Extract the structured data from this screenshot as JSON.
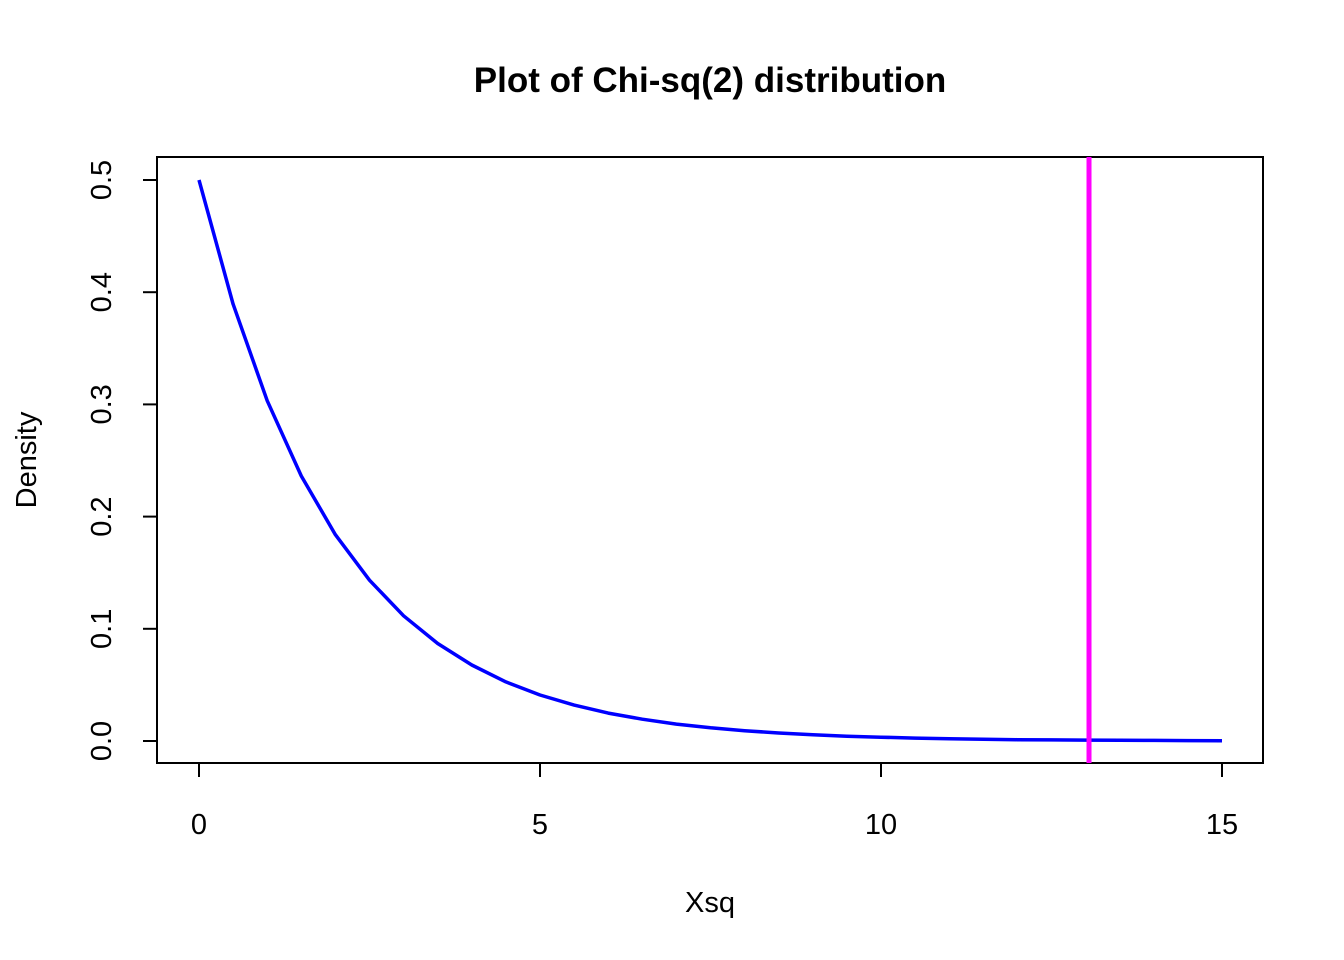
{
  "chart_data": {
    "type": "line",
    "title": "Plot of Chi-sq(2) distribution",
    "xlabel": "Xsq",
    "ylabel": "Density",
    "xlim": [
      0,
      15
    ],
    "ylim": [
      0,
      0.5
    ],
    "x_ticks": [
      {
        "value": 0,
        "label": "0"
      },
      {
        "value": 5,
        "label": "5"
      },
      {
        "value": 10,
        "label": "10"
      },
      {
        "value": 15,
        "label": "15"
      }
    ],
    "y_ticks": [
      {
        "value": 0.0,
        "label": "0.0"
      },
      {
        "value": 0.1,
        "label": "0.1"
      },
      {
        "value": 0.2,
        "label": "0.2"
      },
      {
        "value": 0.3,
        "label": "0.3"
      },
      {
        "value": 0.4,
        "label": "0.4"
      },
      {
        "value": 0.5,
        "label": "0.5"
      }
    ],
    "grid": false,
    "series": [
      {
        "color": "#0000ff",
        "x": [
          0,
          0.5,
          1,
          1.5,
          2,
          2.5,
          3,
          3.5,
          4,
          4.5,
          5,
          5.5,
          6,
          6.5,
          7,
          7.5,
          8,
          8.5,
          9,
          9.5,
          10,
          10.5,
          11,
          11.5,
          12,
          12.5,
          13,
          13.5,
          14,
          14.5,
          15
        ],
        "y": [
          0.5,
          0.3894,
          0.3033,
          0.2362,
          0.1839,
          0.1433,
          0.1116,
          0.0869,
          0.0677,
          0.0527,
          0.041,
          0.032,
          0.0249,
          0.0194,
          0.0151,
          0.0118,
          0.0092,
          0.0071,
          0.0056,
          0.0043,
          0.0034,
          0.0026,
          0.002,
          0.0016,
          0.0012,
          0.001,
          0.0008,
          0.0006,
          0.0005,
          0.0004,
          0.0003
        ]
      }
    ],
    "vline": {
      "x": 13.05,
      "color": "#ff00ff"
    }
  }
}
